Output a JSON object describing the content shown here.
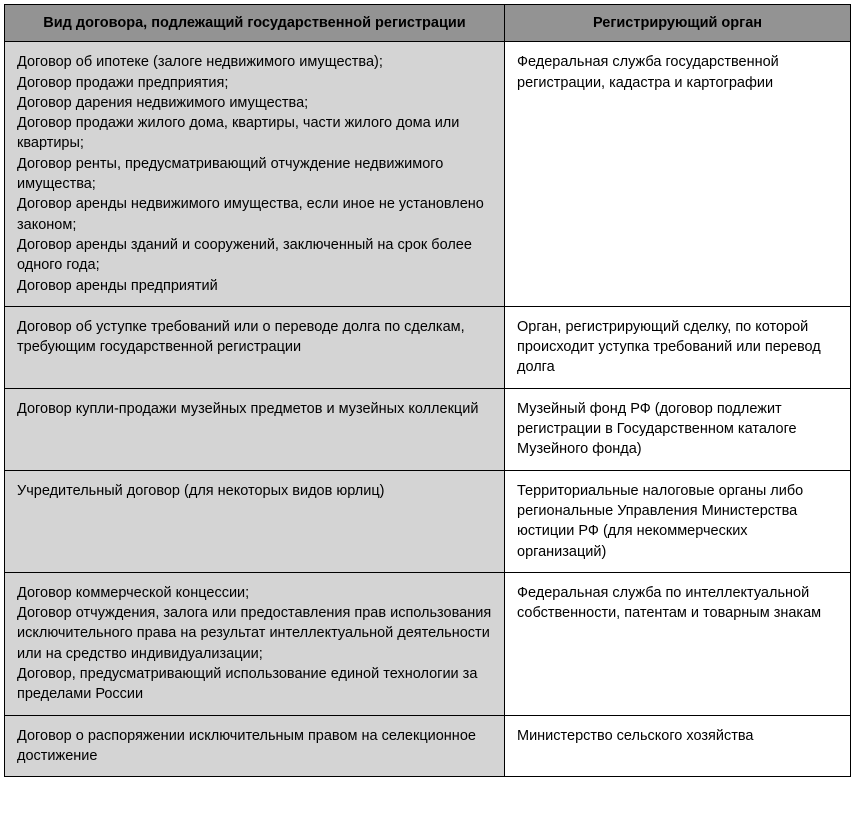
{
  "table": {
    "type": "table",
    "header_bg": "#939393",
    "col1_bg": "#d4d4d4",
    "col2_bg": "#ffffff",
    "border_color": "#000000",
    "font_size": 14.5,
    "columns": [
      "Вид договора, подлежащий государственной регистрации",
      "Регистрирующий орган"
    ],
    "rows": [
      {
        "contract": "Договор об ипотеке (залоге недвижимого имущества);\nДоговор продажи предприятия;\nДоговор дарения недвижимого имущества;\nДоговор продажи жилого дома, квартиры, части жилого дома или квартиры;\nДоговор ренты, предусматривающий отчуждение недвижимого имущества;\nДоговор аренды недвижимого имущества, если иное не установлено законом;\nДоговор аренды зданий и сооружений, заключенный на срок более одного года;\nДоговор аренды предприятий",
        "body": "Федеральная служба государственной регистрации, кадастра и картографии"
      },
      {
        "contract": "Договор об уступке требований или о переводе долга по сделкам, требующим государственной регистрации",
        "body": "Орган, регистрирующий сделку, по которой происходит уступка требований или перевод долга"
      },
      {
        "contract": "Договор купли-продажи музейных предметов и музейных коллекций",
        "body": "Музейный фонд РФ (договор подлежит регистрации в Государственном каталоге Музейного фонда)"
      },
      {
        "contract": "Учредительный договор (для некоторых видов юрлиц)",
        "body": "Территориальные налоговые органы либо региональные Управления Министерства юстиции РФ (для некоммерческих организаций)"
      },
      {
        "contract": "Договор коммерческой концессии;\nДоговор отчуждения, залога или предоставления прав использования исключительного права на результат интеллектуальной деятельности или на средство индивидуализации;\nДоговор, предусматривающий использование единой технологии за пределами России",
        "body": "Федеральная служба по интеллектуальной собственности, патентам и товарным знакам"
      },
      {
        "contract": "Договор о распоряжении исключительным правом на селекционное достижение",
        "body": "Министерство сельского хозяйства"
      }
    ]
  }
}
